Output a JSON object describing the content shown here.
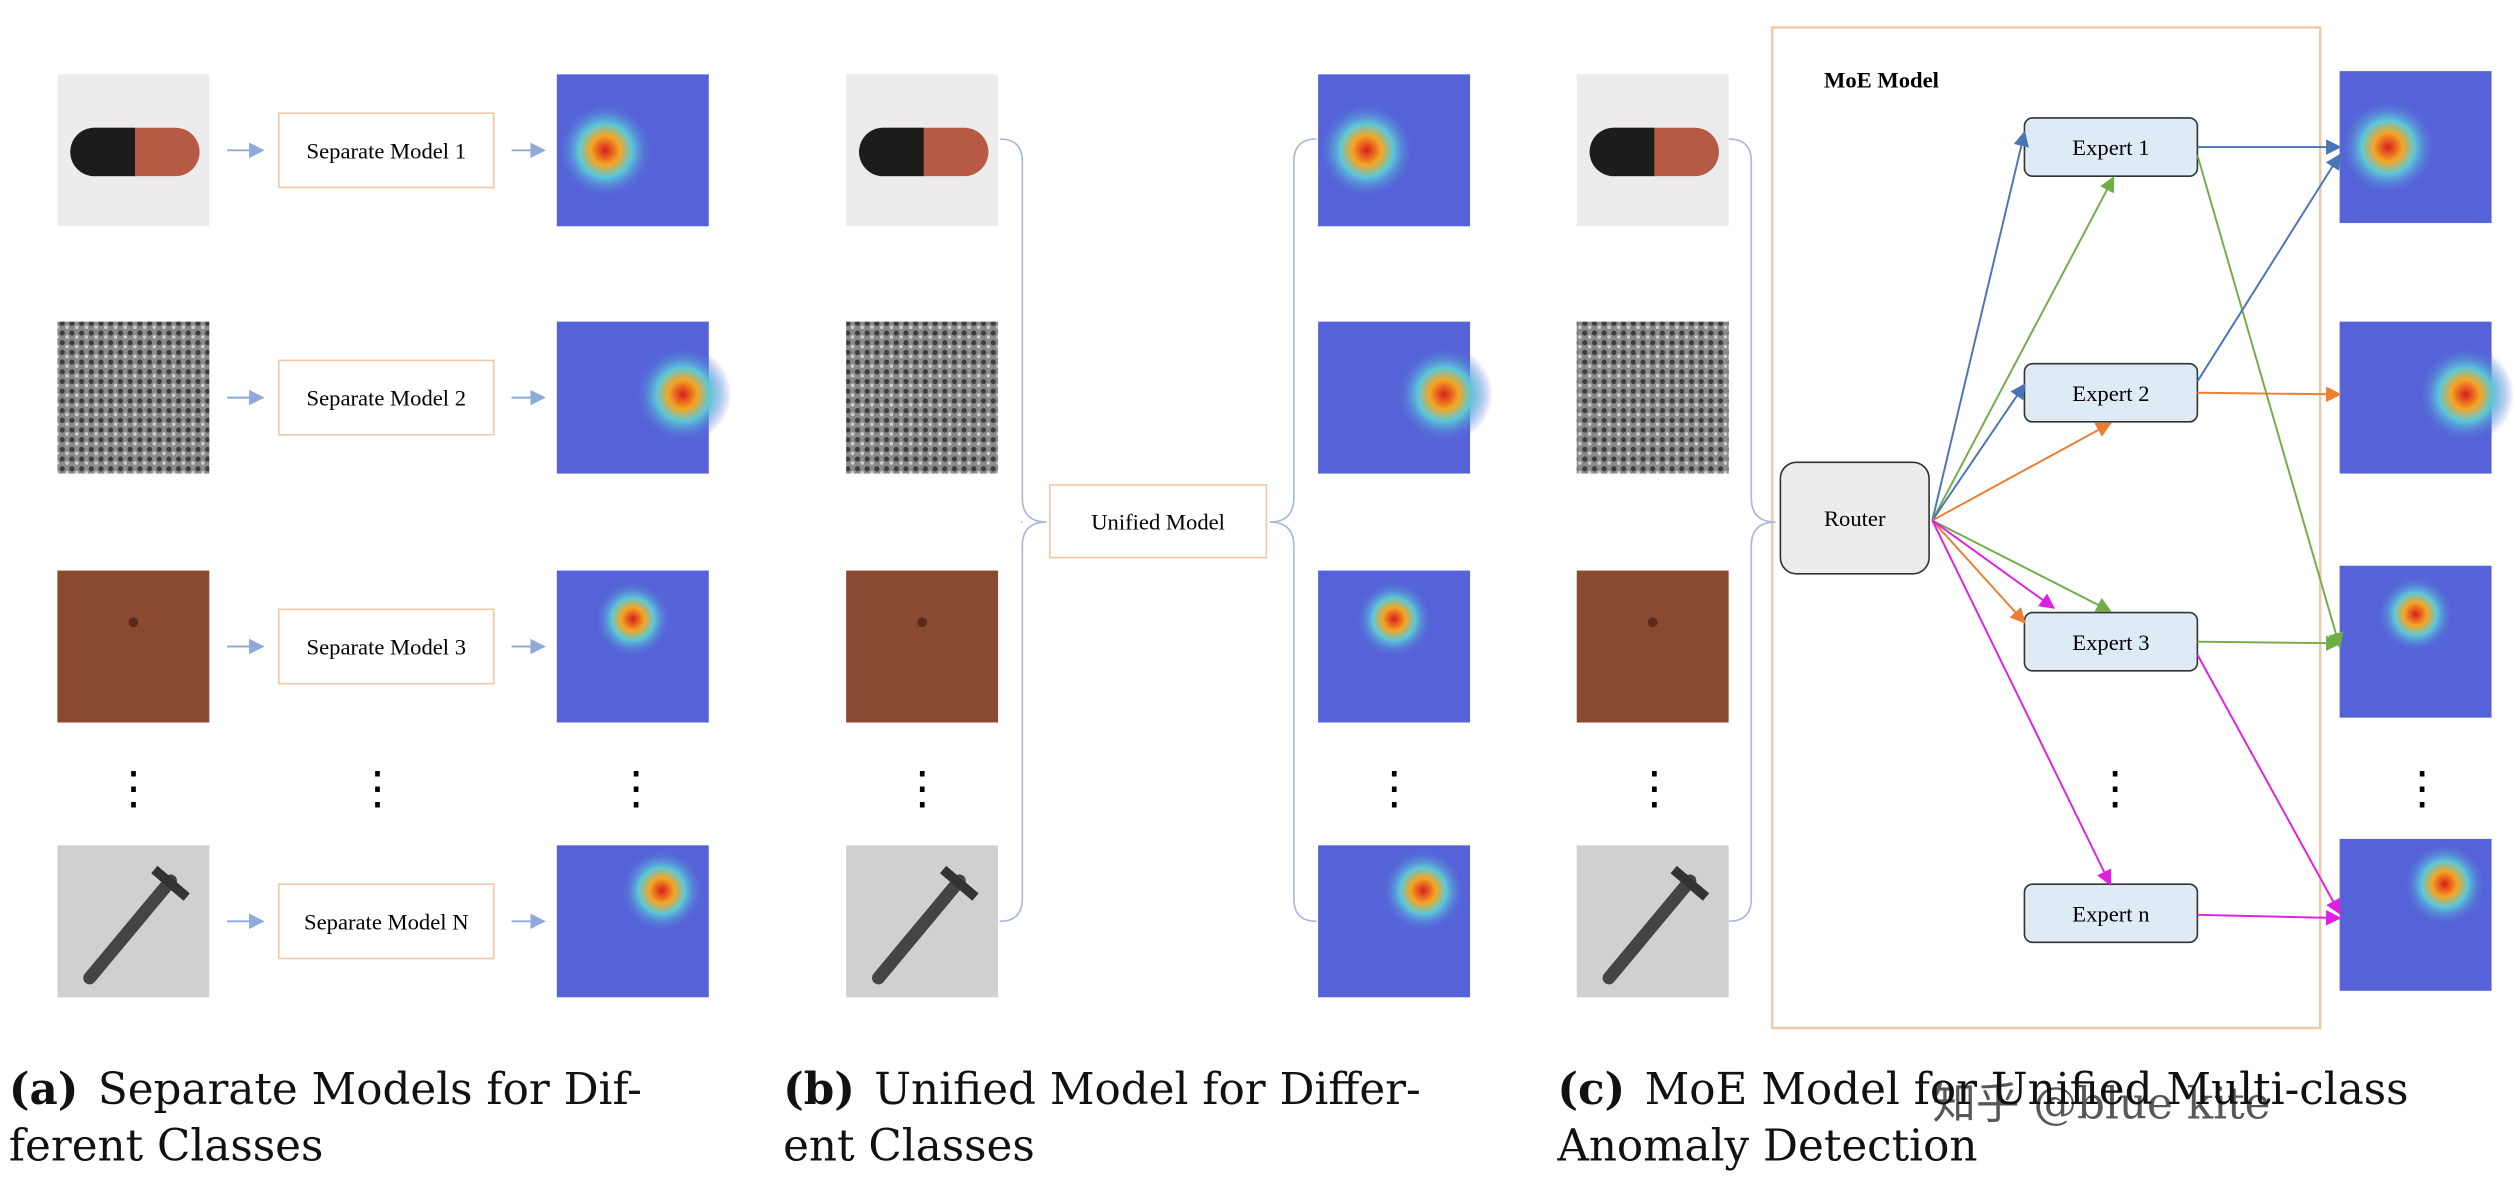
{
  "panels": [
    {
      "label": "(a)",
      "caption": [
        "Separate Models for Dif-",
        "ferent Classes"
      ],
      "models": [
        "Separate Model 1",
        "Separate Model 2",
        "Separate Model 3",
        "Separate Model N"
      ]
    },
    {
      "label": "(b)",
      "caption": [
        "Unified Model for Differ-",
        "ent Classes"
      ],
      "model": "Unified Model"
    },
    {
      "label": "(c)",
      "caption": [
        "MoE Model for Unified Multi-class",
        "Anomaly Detection"
      ],
      "title": "MoE Model",
      "router": "Router",
      "experts": [
        "Expert 1",
        "Expert 2",
        "Expert 3",
        "Expert n"
      ]
    }
  ],
  "watermark": "知乎 @blue kite"
}
